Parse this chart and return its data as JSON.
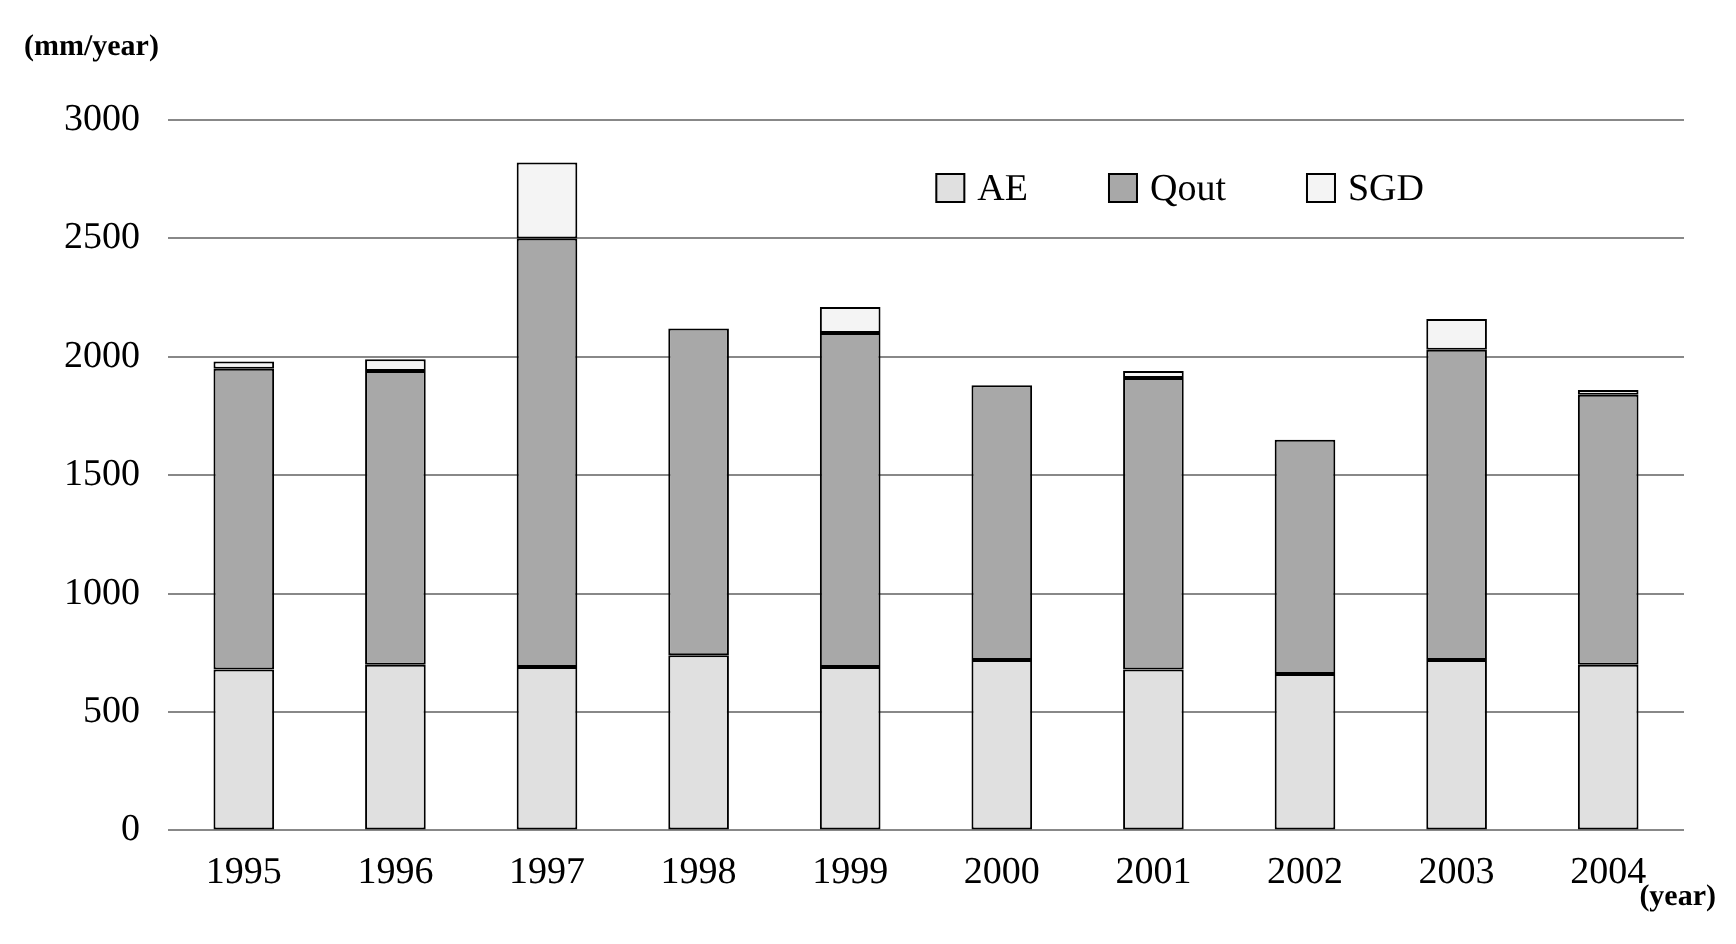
{
  "chart_data": {
    "type": "bar",
    "stacked": true,
    "xlabel": "(year)",
    "ylabel": "(mm/year)",
    "categories": [
      "1995",
      "1996",
      "1997",
      "1998",
      "1999",
      "2000",
      "2001",
      "2002",
      "2003",
      "2004"
    ],
    "series": [
      {
        "name": "AE",
        "color": "#e0e0e0",
        "values": [
          680,
          700,
          690,
          740,
          690,
          720,
          680,
          660,
          720,
          700
        ]
      },
      {
        "name": "Qout",
        "color": "#a8a8a8",
        "values": [
          1270,
          1240,
          1810,
          1380,
          1410,
          1160,
          1230,
          990,
          1310,
          1140
        ]
      },
      {
        "name": "SGD",
        "color": "#f4f4f4",
        "values": [
          30,
          50,
          320,
          0,
          110,
          0,
          30,
          0,
          130,
          20
        ]
      }
    ],
    "ylim": [
      0,
      3000
    ],
    "yticks": [
      0,
      500,
      1000,
      1500,
      2000,
      2500,
      3000
    ],
    "grid": "y",
    "legend": "top right"
  }
}
